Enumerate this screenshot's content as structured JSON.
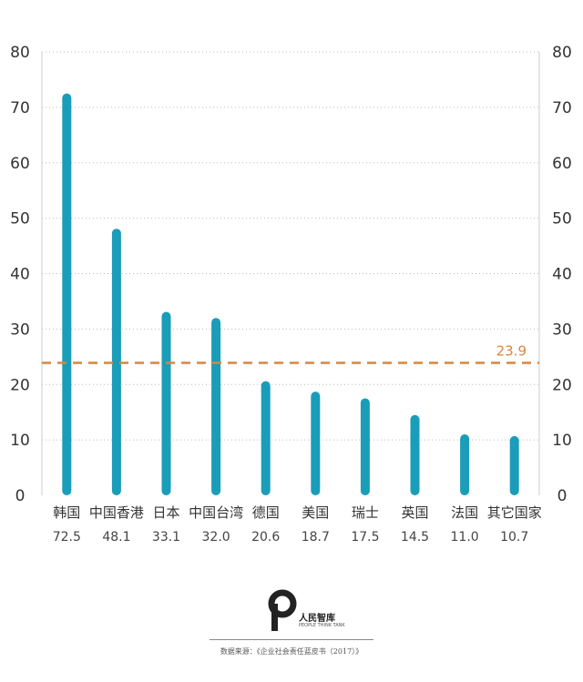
{
  "chart_data": {
    "type": "bar",
    "categories": [
      "韩国",
      "中国香港",
      "日本",
      "中国台湾",
      "德国",
      "美国",
      "瑞士",
      "英国",
      "法国",
      "其它国家"
    ],
    "values": [
      72.5,
      48.1,
      33.1,
      32.0,
      20.6,
      18.7,
      17.5,
      14.5,
      11.0,
      10.7
    ],
    "value_labels": [
      "72.5",
      "48.1",
      "33.1",
      "32.0",
      "20.6",
      "18.7",
      "17.5",
      "14.5",
      "11.0",
      "10.7"
    ],
    "ylim": [
      0,
      80
    ],
    "yticks": [
      0,
      10,
      20,
      30,
      40,
      50,
      60,
      70,
      80
    ],
    "reference_line": {
      "value": 23.9,
      "label": "23.9",
      "style": "dashed"
    },
    "grid": "horizontal dotted",
    "axes": "y-axis ticks on both left and right",
    "colors": {
      "bar": "#1a9db8",
      "reference": "#d9863f"
    }
  },
  "footer": {
    "logo_text": "人民智库",
    "logo_sub": "PEOPLE THINK TANK",
    "source": "数据来源：《企业社会责任蓝皮书（2017）》"
  }
}
